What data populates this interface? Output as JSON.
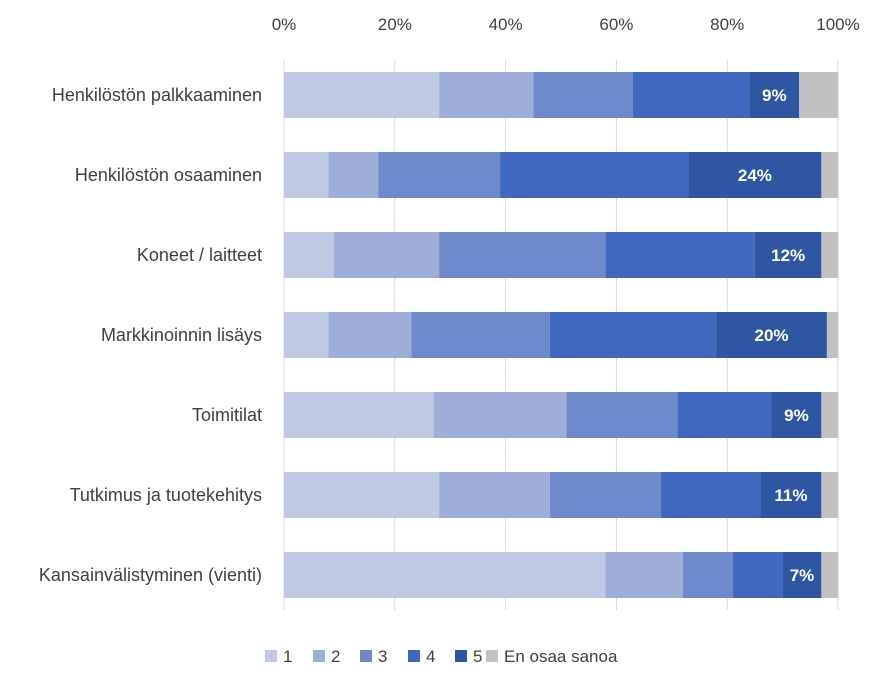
{
  "chart_data": {
    "type": "bar",
    "orientation": "horizontal-stacked-100",
    "title": "",
    "xlabel": "",
    "ylabel": "",
    "xlim": [
      0,
      100
    ],
    "grid": true,
    "legend_position": "bottom",
    "x_ticks": [
      "0%",
      "20%",
      "40%",
      "60%",
      "80%",
      "100%"
    ],
    "categories": [
      "Henkilöstön palkkaaminen",
      "Henkilöstön osaaminen",
      "Koneet / laitteet",
      "Markkinoinnin lisäys",
      "Toimitilat",
      "Tutkimus ja tuotekehitys",
      "Kansainvälistyminen (vienti)"
    ],
    "series": [
      {
        "name": "1",
        "color": "#c0c9e4",
        "values": [
          28,
          8,
          9,
          8,
          27,
          28,
          58
        ]
      },
      {
        "name": "2",
        "color": "#9eaed9",
        "values": [
          17,
          9,
          19,
          15,
          24,
          20,
          14
        ]
      },
      {
        "name": "3",
        "color": "#6f8acb",
        "values": [
          18,
          22,
          30,
          25,
          20,
          20,
          9
        ]
      },
      {
        "name": "4",
        "color": "#4069bf",
        "values": [
          21,
          34,
          27,
          30,
          17,
          18,
          9
        ]
      },
      {
        "name": "5",
        "color": "#2f56a2",
        "values": [
          9,
          24,
          12,
          20,
          9,
          11,
          7
        ]
      },
      {
        "name": "En osaa sanoa",
        "color": "#c1c1c1",
        "values": [
          7,
          3,
          3,
          2,
          3,
          3,
          3
        ]
      }
    ],
    "data_labels": {
      "series": "5",
      "texts": [
        "9%",
        "24%",
        "12%",
        "20%",
        "9%",
        "11%",
        "7%"
      ]
    }
  },
  "legend": {
    "items": [
      "1",
      "2",
      "3",
      "4",
      "5",
      "En osaa sanoa"
    ]
  }
}
